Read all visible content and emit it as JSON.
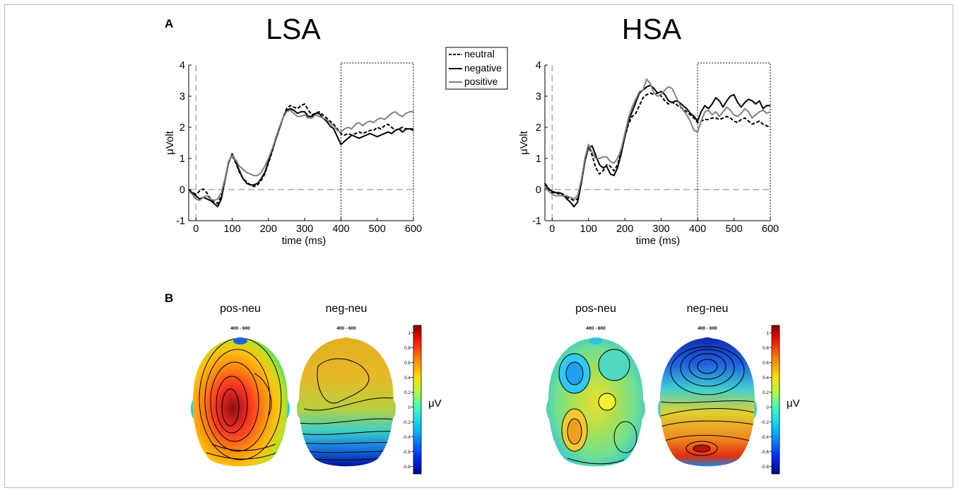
{
  "panel_labels": {
    "a": "A",
    "b": "B"
  },
  "chart_data": [
    {
      "type": "line",
      "title": "LSA",
      "xlabel": "time (ms)",
      "ylabel": "μVolt",
      "xlim": [
        -20,
        600
      ],
      "ylim": [
        -1,
        4
      ],
      "xticks": [
        "0",
        "100",
        "200",
        "300",
        "400",
        "500",
        "600"
      ],
      "yticks": [
        "-1",
        "0",
        "1",
        "2",
        "3",
        "4"
      ],
      "analysis_window": [
        400,
        600
      ],
      "legend_position": "top-right",
      "series": [
        {
          "name": "neutral",
          "style": "dashed",
          "color": "#000000",
          "x": [
            -20,
            -10,
            0,
            10,
            20,
            30,
            40,
            50,
            60,
            70,
            80,
            90,
            100,
            110,
            120,
            130,
            140,
            150,
            160,
            170,
            180,
            190,
            200,
            210,
            220,
            230,
            240,
            250,
            260,
            270,
            280,
            290,
            300,
            310,
            320,
            330,
            340,
            350,
            360,
            370,
            380,
            390,
            400,
            410,
            420,
            430,
            440,
            450,
            460,
            470,
            480,
            490,
            500,
            510,
            520,
            530,
            540,
            550,
            560,
            570,
            580,
            590,
            600
          ],
          "y": [
            0,
            -0.1,
            -0.15,
            -0.05,
            0.02,
            -0.1,
            -0.3,
            -0.4,
            -0.45,
            -0.2,
            0.3,
            0.9,
            1.1,
            0.85,
            0.55,
            0.35,
            0.25,
            0.15,
            0.1,
            0.15,
            0.3,
            0.5,
            0.85,
            1.2,
            1.6,
            1.95,
            2.3,
            2.6,
            2.7,
            2.65,
            2.6,
            2.7,
            2.75,
            2.55,
            2.4,
            2.45,
            2.5,
            2.4,
            2.3,
            2.2,
            2.1,
            1.95,
            1.8,
            1.75,
            1.8,
            1.75,
            1.8,
            1.85,
            1.8,
            1.85,
            1.9,
            1.9,
            2.0,
            1.95,
            2.05,
            2.1,
            2.0,
            1.9,
            1.95,
            2.0,
            1.95,
            1.95,
            1.95
          ]
        },
        {
          "name": "negative",
          "style": "solid",
          "color": "#000000",
          "x": [
            -20,
            -10,
            0,
            10,
            20,
            30,
            40,
            50,
            60,
            70,
            80,
            90,
            100,
            110,
            120,
            130,
            140,
            150,
            160,
            170,
            180,
            190,
            200,
            210,
            220,
            230,
            240,
            250,
            260,
            270,
            280,
            290,
            300,
            310,
            320,
            330,
            340,
            350,
            360,
            370,
            380,
            390,
            400,
            410,
            420,
            430,
            440,
            450,
            460,
            470,
            480,
            490,
            500,
            510,
            520,
            530,
            540,
            550,
            560,
            570,
            580,
            590,
            600
          ],
          "y": [
            -0.05,
            -0.1,
            -0.2,
            -0.3,
            -0.25,
            -0.3,
            -0.35,
            -0.45,
            -0.55,
            -0.3,
            0.3,
            0.85,
            1.15,
            0.9,
            0.6,
            0.35,
            0.2,
            0.15,
            0.15,
            0.2,
            0.35,
            0.55,
            0.9,
            1.25,
            1.6,
            1.95,
            2.3,
            2.55,
            2.6,
            2.55,
            2.45,
            2.5,
            2.5,
            2.35,
            2.35,
            2.45,
            2.45,
            2.3,
            2.2,
            2.05,
            1.95,
            1.7,
            1.45,
            1.55,
            1.65,
            1.75,
            1.7,
            1.65,
            1.7,
            1.75,
            1.8,
            1.75,
            1.7,
            1.75,
            1.8,
            1.85,
            1.8,
            1.9,
            1.95,
            1.85,
            1.95,
            1.95,
            1.9
          ]
        },
        {
          "name": "positive",
          "style": "solid",
          "color": "#808080",
          "x": [
            -20,
            -10,
            0,
            10,
            20,
            30,
            40,
            50,
            60,
            70,
            80,
            90,
            100,
            110,
            120,
            130,
            140,
            150,
            160,
            170,
            180,
            190,
            200,
            210,
            220,
            230,
            240,
            250,
            260,
            270,
            280,
            290,
            300,
            310,
            320,
            330,
            340,
            350,
            360,
            370,
            380,
            390,
            400,
            410,
            420,
            430,
            440,
            450,
            460,
            470,
            480,
            490,
            500,
            510,
            520,
            530,
            540,
            550,
            560,
            570,
            580,
            590,
            600
          ],
          "y": [
            -0.05,
            -0.15,
            -0.3,
            -0.35,
            -0.25,
            -0.2,
            -0.3,
            -0.35,
            -0.3,
            -0.1,
            0.35,
            0.9,
            1.1,
            0.95,
            0.75,
            0.65,
            0.55,
            0.5,
            0.45,
            0.45,
            0.55,
            0.75,
            1.0,
            1.3,
            1.65,
            2.0,
            2.3,
            2.5,
            2.55,
            2.45,
            2.35,
            2.35,
            2.4,
            2.3,
            2.3,
            2.4,
            2.35,
            2.3,
            2.25,
            2.15,
            2.05,
            1.9,
            1.85,
            1.95,
            2.0,
            1.95,
            2.1,
            2.15,
            2.05,
            2.15,
            2.2,
            2.15,
            2.25,
            2.3,
            2.25,
            2.35,
            2.45,
            2.5,
            2.4,
            2.35,
            2.45,
            2.5,
            2.5
          ]
        }
      ]
    },
    {
      "type": "line",
      "title": "HSA",
      "xlabel": "time (ms)",
      "ylabel": "μVolt",
      "xlim": [
        -20,
        600
      ],
      "ylim": [
        -1,
        4
      ],
      "xticks": [
        "0",
        "100",
        "200",
        "300",
        "400",
        "500",
        "600"
      ],
      "yticks": [
        "-1",
        "0",
        "1",
        "2",
        "3",
        "4"
      ],
      "analysis_window": [
        400,
        600
      ],
      "series": [
        {
          "name": "neutral",
          "style": "dashed",
          "color": "#000000",
          "x": [
            -20,
            -10,
            0,
            10,
            20,
            30,
            40,
            50,
            60,
            70,
            80,
            90,
            100,
            110,
            120,
            130,
            140,
            150,
            160,
            170,
            180,
            190,
            200,
            210,
            220,
            230,
            240,
            250,
            260,
            270,
            280,
            290,
            300,
            310,
            320,
            330,
            340,
            350,
            360,
            370,
            380,
            390,
            400,
            410,
            420,
            430,
            440,
            450,
            460,
            470,
            480,
            490,
            500,
            510,
            520,
            530,
            540,
            550,
            560,
            570,
            580,
            590,
            600
          ],
          "y": [
            0.2,
            0.05,
            -0.1,
            -0.1,
            -0.15,
            -0.2,
            -0.25,
            -0.3,
            -0.35,
            -0.3,
            0.2,
            0.9,
            1.4,
            1.1,
            0.7,
            0.5,
            0.6,
            0.8,
            0.75,
            0.6,
            0.8,
            1.2,
            1.7,
            2.1,
            2.35,
            2.45,
            2.7,
            2.95,
            3.05,
            3.1,
            3.05,
            3.1,
            3.0,
            2.85,
            2.75,
            2.8,
            2.75,
            2.65,
            2.6,
            2.5,
            2.4,
            2.3,
            2.15,
            2.2,
            2.25,
            2.25,
            2.3,
            2.3,
            2.25,
            2.3,
            2.35,
            2.3,
            2.2,
            2.15,
            2.25,
            2.3,
            2.2,
            2.1,
            2.15,
            2.2,
            2.1,
            2.05,
            2.0
          ]
        },
        {
          "name": "negative",
          "style": "solid",
          "color": "#000000",
          "x": [
            -20,
            -10,
            0,
            10,
            20,
            30,
            40,
            50,
            60,
            70,
            80,
            90,
            100,
            110,
            120,
            130,
            140,
            150,
            160,
            170,
            180,
            190,
            200,
            210,
            220,
            230,
            240,
            250,
            260,
            270,
            280,
            290,
            300,
            310,
            320,
            330,
            340,
            350,
            360,
            370,
            380,
            390,
            400,
            410,
            420,
            430,
            440,
            450,
            460,
            470,
            480,
            490,
            500,
            510,
            520,
            530,
            540,
            550,
            560,
            570,
            580,
            590,
            600
          ],
          "y": [
            0.2,
            0.0,
            -0.05,
            -0.1,
            -0.1,
            -0.15,
            -0.3,
            -0.4,
            -0.55,
            -0.4,
            0.2,
            0.9,
            1.35,
            1.4,
            1.1,
            0.8,
            0.7,
            0.75,
            0.5,
            0.45,
            0.7,
            1.15,
            1.7,
            2.2,
            2.5,
            2.8,
            3.1,
            3.2,
            3.3,
            3.35,
            3.25,
            3.1,
            3.15,
            3.05,
            2.85,
            2.8,
            2.85,
            2.8,
            2.7,
            2.6,
            2.45,
            2.35,
            2.2,
            2.5,
            2.7,
            2.6,
            2.75,
            2.95,
            2.85,
            2.65,
            2.85,
            3.0,
            3.05,
            2.8,
            2.65,
            2.8,
            2.9,
            2.85,
            2.75,
            2.85,
            2.6,
            2.7,
            2.7
          ]
        },
        {
          "name": "positive",
          "style": "solid",
          "color": "#808080",
          "x": [
            -20,
            -10,
            0,
            10,
            20,
            30,
            40,
            50,
            60,
            70,
            80,
            90,
            100,
            110,
            120,
            130,
            140,
            150,
            160,
            170,
            180,
            190,
            200,
            210,
            220,
            230,
            240,
            250,
            260,
            270,
            280,
            290,
            300,
            310,
            320,
            330,
            340,
            350,
            360,
            370,
            380,
            390,
            400,
            410,
            420,
            430,
            440,
            450,
            460,
            470,
            480,
            490,
            500,
            510,
            520,
            530,
            540,
            550,
            560,
            570,
            580,
            590,
            600
          ],
          "y": [
            0.1,
            -0.05,
            -0.15,
            -0.2,
            -0.2,
            -0.2,
            -0.2,
            -0.25,
            -0.3,
            -0.2,
            0.3,
            1.0,
            1.45,
            1.2,
            1.0,
            1.0,
            1.05,
            1.05,
            0.9,
            0.85,
            1.0,
            1.3,
            1.8,
            2.3,
            2.65,
            2.9,
            3.15,
            3.2,
            3.55,
            3.4,
            3.1,
            3.0,
            3.05,
            3.2,
            3.3,
            3.25,
            3.0,
            2.75,
            2.55,
            2.4,
            2.2,
            1.9,
            1.85,
            2.2,
            2.5,
            2.55,
            2.4,
            2.5,
            2.35,
            2.5,
            2.65,
            2.55,
            2.4,
            2.35,
            2.45,
            2.6,
            2.5,
            2.3,
            2.4,
            2.5,
            2.55,
            2.45,
            2.5
          ]
        }
      ]
    },
    {
      "type": "heatmap",
      "description": "topographic maps, 400 - 600 ms",
      "unit": "μV",
      "colorbar": {
        "ticks": [
          "1",
          "0.8",
          "0.6",
          "0.4",
          "0.2",
          "0",
          "-0.2",
          "-0.4",
          "-0.6",
          "-0.8"
        ],
        "min": -0.9,
        "max": 1.1
      },
      "maps": [
        {
          "group": "LSA",
          "title": "pos-neu",
          "window": "400 - 600",
          "summary": "strong positive centro-left parietal maximum ~1.1 μV, decreasing toward frontal/occipital edges"
        },
        {
          "group": "LSA",
          "title": "neg-neu",
          "window": "400 - 600",
          "summary": "positive frontal-central ~0.4 μV, negative occipital ~-0.8 μV"
        },
        {
          "group": "HSA",
          "title": "pos-neu",
          "window": "400 - 600",
          "summary": "near-zero with small positive left-parietal and negative frontal patches"
        },
        {
          "group": "HSA",
          "title": "neg-neu",
          "window": "400 - 600",
          "summary": "negative frontal ~-0.8 μV, positive occipital maximum ~0.9 μV"
        }
      ]
    }
  ]
}
